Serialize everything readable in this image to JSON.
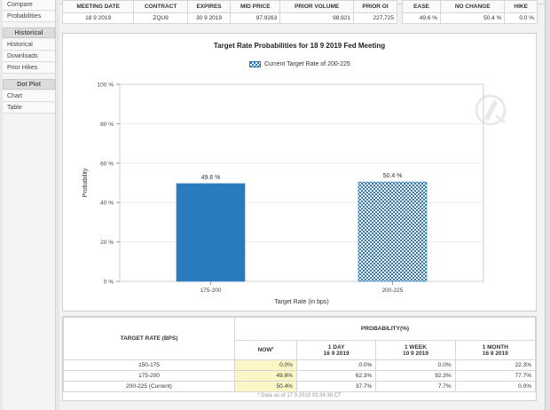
{
  "sidebar": {
    "items_top": [
      "Compare",
      "Probabilities"
    ],
    "section_historical": "Historical",
    "items_historical": [
      "Historical",
      "Downloads",
      "Prior Hikes"
    ],
    "section_dotplot": "Dot Plot",
    "items_dotplot": [
      "Chart",
      "Table"
    ]
  },
  "meeting_table": {
    "headers": [
      "MEETING DATE",
      "CONTRACT",
      "EXPIRES",
      "MID PRICE",
      "PRIOR VOLUME",
      "PRIOR OI"
    ],
    "row": [
      "18 9 2019",
      "ZQU9",
      "30 9 2019",
      "97.9263",
      "98,921",
      "227,725"
    ]
  },
  "prob_summary": {
    "headers": [
      "EASE",
      "NO CHANGE",
      "HIKE"
    ],
    "row": [
      "49.6 %",
      "50.4 %",
      "0.0 %"
    ]
  },
  "chart_data": {
    "type": "bar",
    "title": "Target Rate Probabilities for 18 9 2019 Fed Meeting",
    "legend": "Current Target Rate of 200-225",
    "xlabel": "Target Rate (in bps)",
    "ylabel": "Probability",
    "categories": [
      "175-200",
      "200-225"
    ],
    "values": [
      49.6,
      50.4
    ],
    "value_labels": [
      "49.6 %",
      "50.4 %"
    ],
    "ylim": [
      0,
      100
    ],
    "yticks": [
      "0 %",
      "20 %",
      "40 %",
      "60 %",
      "80 %",
      "100 %"
    ],
    "ytick_values": [
      0,
      20,
      40,
      60,
      80,
      100
    ],
    "colors": {
      "solid": "#2a7bbd",
      "pattern": "#2a7bbd"
    }
  },
  "prob_table": {
    "col_target": "TARGET RATE (BPS)",
    "col_prob": "PROBABILITY(%)",
    "sub_headers": [
      {
        "top": "NOW",
        "bottom": "",
        "mark": "*"
      },
      {
        "top": "1 DAY",
        "bottom": "16 9 2019"
      },
      {
        "top": "1 WEEK",
        "bottom": "10 9 2019"
      },
      {
        "top": "1 MONTH",
        "bottom": "16 8 2019"
      }
    ],
    "rows": [
      {
        "rate": "150-175",
        "values": [
          "0.0%",
          "0.0%",
          "0.0%",
          "22.3%"
        ]
      },
      {
        "rate": "175-200",
        "values": [
          "49.6%",
          "62.3%",
          "92.3%",
          "77.7%"
        ]
      },
      {
        "rate": "200-225 (Current)",
        "values": [
          "50.4%",
          "37.7%",
          "7.7%",
          "0.0%"
        ]
      }
    ],
    "footnote": "* Data as of 17 9 2019 03:34:38 CT"
  }
}
